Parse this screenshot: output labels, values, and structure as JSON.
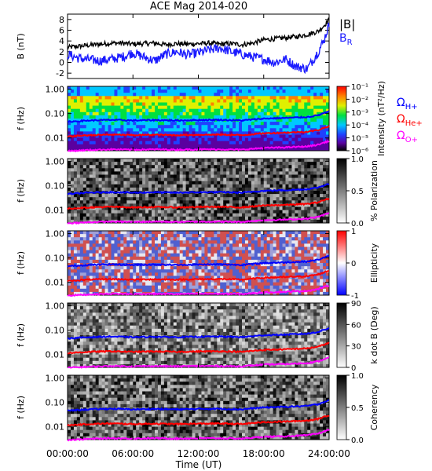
{
  "title": "ACE Mag 2014-020",
  "colors": {
    "B_total": "#000000",
    "B_R": "#1a1aff",
    "H_plus": "#0000ff",
    "He_plus": "#ff0000",
    "O_plus": "#ff00ff"
  },
  "chart_data": [
    {
      "type": "line",
      "panel": "B",
      "ylabel": "B (nT)",
      "yticks": [
        "-2",
        "0",
        "2",
        "4",
        "6",
        "8"
      ],
      "ylim": [
        -3,
        9
      ],
      "legend": [
        "|B|",
        "B_R"
      ],
      "x_hours": [
        0,
        1,
        2,
        3,
        4,
        5,
        6,
        7,
        8,
        9,
        10,
        11,
        12,
        13,
        14,
        15,
        16,
        17,
        18,
        19,
        20,
        21,
        22,
        23,
        23.5,
        24
      ],
      "series": [
        {
          "name": "|B|",
          "values": [
            2.8,
            3.0,
            3.2,
            3.4,
            3.6,
            3.6,
            3.4,
            3.5,
            3.6,
            3.3,
            3.5,
            3.4,
            3.5,
            3.6,
            3.4,
            3.5,
            3.3,
            3.6,
            4.2,
            4.4,
            4.6,
            4.8,
            5.2,
            5.8,
            6.8,
            8.0
          ]
        },
        {
          "name": "B_R",
          "values": [
            1.5,
            0.8,
            0.5,
            0.3,
            0.6,
            1.0,
            1.8,
            1.0,
            0.3,
            1.5,
            2.0,
            1.4,
            1.8,
            2.3,
            2.7,
            2.0,
            1.5,
            1.0,
            0.6,
            0.0,
            0.6,
            -0.8,
            -1.2,
            2.0,
            4.0,
            7.0
          ]
        }
      ]
    },
    {
      "type": "heatmap",
      "panel": "Intensity",
      "ylabel": "f (Hz)",
      "yticks": [
        "0.01",
        "0.10",
        "1.00"
      ],
      "ylog": true,
      "colorbar_label": "Intensity (nT²/Hz)",
      "colorbar_ticks": [
        "10⁻⁶",
        "10⁻⁵",
        "10⁻⁴",
        "10⁻³",
        "10⁻²",
        "10⁻¹"
      ],
      "legend": [
        "ΩH+",
        "ΩHe+",
        "ΩO+"
      ]
    },
    {
      "type": "heatmap",
      "panel": "Polarization",
      "ylabel": "f (Hz)",
      "yticks": [
        "0.01",
        "0.10",
        "1.00"
      ],
      "ylog": true,
      "colorbar_label": "% Polarization",
      "colorbar_ticks": [
        "0.0",
        "0.5",
        "1.0"
      ]
    },
    {
      "type": "heatmap",
      "panel": "Ellipticity",
      "ylabel": "f (Hz)",
      "yticks": [
        "0.01",
        "0.10",
        "1.00"
      ],
      "ylog": true,
      "colorbar_label": "Ellipticity",
      "colorbar_ticks": [
        "-1",
        "0",
        "1"
      ]
    },
    {
      "type": "heatmap",
      "panel": "kdotB",
      "ylabel": "f (Hz)",
      "yticks": [
        "0.01",
        "0.10",
        "1.00"
      ],
      "ylog": true,
      "colorbar_label": "k dot B (Deg)",
      "colorbar_ticks": [
        "0",
        "30",
        "60",
        "90"
      ]
    },
    {
      "type": "heatmap",
      "panel": "Coherency",
      "ylabel": "f (Hz)",
      "yticks": [
        "0.01",
        "0.10",
        "1.00"
      ],
      "ylog": true,
      "colorbar_label": "Coherency",
      "colorbar_ticks": [
        "0.0",
        "0.5",
        "1.0"
      ]
    }
  ],
  "gyro_frequencies": {
    "x_hours": [
      0,
      2,
      4,
      6,
      8,
      10,
      12,
      14,
      16,
      18,
      20,
      22,
      23,
      24
    ],
    "H_plus_Hz": [
      0.046,
      0.052,
      0.055,
      0.052,
      0.054,
      0.052,
      0.054,
      0.055,
      0.052,
      0.062,
      0.066,
      0.072,
      0.085,
      0.12
    ],
    "He_plus_Hz": [
      0.0115,
      0.013,
      0.0137,
      0.013,
      0.0135,
      0.013,
      0.0135,
      0.0137,
      0.013,
      0.0155,
      0.0165,
      0.018,
      0.021,
      0.03
    ],
    "O_plus_Hz": [
      0.0029,
      0.0032,
      0.0034,
      0.0033,
      0.0034,
      0.0033,
      0.0034,
      0.0034,
      0.0033,
      0.0039,
      0.0041,
      0.0045,
      0.0053,
      0.0075
    ]
  },
  "xaxis": {
    "label": "Time (UT)",
    "ticks": [
      "00:00:00",
      "06:00:00",
      "12:00:00",
      "18:00:00",
      "24:00:00"
    ],
    "range_hours": [
      0,
      24
    ]
  }
}
